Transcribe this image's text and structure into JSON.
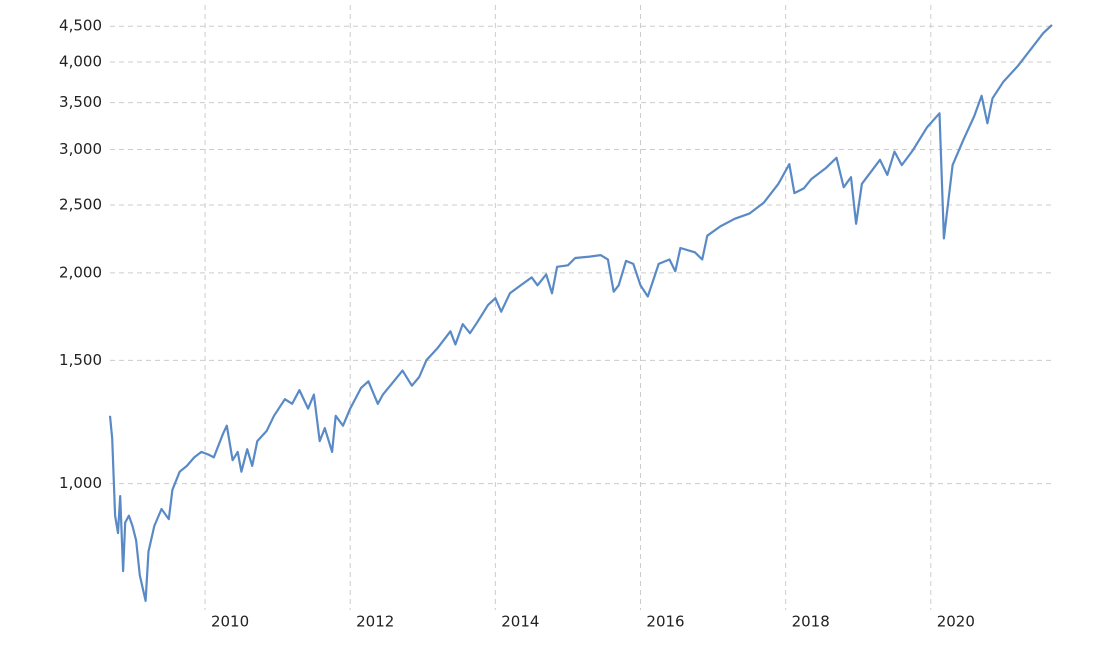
{
  "chart_data": {
    "type": "line",
    "x": [
      2008.69,
      2008.72,
      2008.76,
      2008.8,
      2008.83,
      2008.87,
      2008.9,
      2008.95,
      2009.0,
      2009.05,
      2009.1,
      2009.18,
      2009.22,
      2009.3,
      2009.4,
      2009.5,
      2009.55,
      2009.65,
      2009.75,
      2009.85,
      2009.95,
      2010.05,
      2010.12,
      2010.25,
      2010.3,
      2010.38,
      2010.45,
      2010.5,
      2010.58,
      2010.65,
      2010.72,
      2010.85,
      2010.95,
      2011.1,
      2011.2,
      2011.3,
      2011.42,
      2011.5,
      2011.58,
      2011.65,
      2011.75,
      2011.8,
      2011.9,
      2012.0,
      2012.15,
      2012.25,
      2012.38,
      2012.45,
      2012.6,
      2012.72,
      2012.85,
      2012.95,
      2013.05,
      2013.2,
      2013.38,
      2013.45,
      2013.55,
      2013.65,
      2013.75,
      2013.9,
      2014.0,
      2014.08,
      2014.2,
      2014.35,
      2014.5,
      2014.58,
      2014.7,
      2014.78,
      2014.85,
      2015.0,
      2015.1,
      2015.3,
      2015.45,
      2015.55,
      2015.63,
      2015.7,
      2015.8,
      2015.9,
      2016.0,
      2016.1,
      2016.25,
      2016.4,
      2016.48,
      2016.55,
      2016.75,
      2016.85,
      2016.92,
      2017.1,
      2017.3,
      2017.5,
      2017.7,
      2017.9,
      2018.05,
      2018.12,
      2018.25,
      2018.35,
      2018.55,
      2018.7,
      2018.8,
      2018.9,
      2018.97,
      2019.05,
      2019.3,
      2019.4,
      2019.5,
      2019.6,
      2019.75,
      2019.95,
      2020.12,
      2020.18,
      2020.3,
      2020.45,
      2020.6,
      2020.7,
      2020.78,
      2020.85,
      2021.0,
      2021.2,
      2021.4,
      2021.55,
      2021.67
    ],
    "values": [
      1250,
      1160,
      900,
      850,
      960,
      750,
      880,
      900,
      870,
      830,
      740,
      680,
      800,
      870,
      920,
      890,
      980,
      1040,
      1060,
      1090,
      1110,
      1100,
      1090,
      1180,
      1210,
      1080,
      1110,
      1040,
      1120,
      1060,
      1150,
      1190,
      1250,
      1320,
      1300,
      1360,
      1280,
      1340,
      1150,
      1200,
      1110,
      1250,
      1210,
      1280,
      1370,
      1400,
      1300,
      1340,
      1400,
      1450,
      1380,
      1420,
      1500,
      1560,
      1650,
      1580,
      1690,
      1640,
      1700,
      1800,
      1840,
      1760,
      1870,
      1920,
      1970,
      1920,
      1990,
      1870,
      2040,
      2050,
      2100,
      2110,
      2120,
      2090,
      1880,
      1920,
      2080,
      2060,
      1920,
      1850,
      2060,
      2090,
      2010,
      2170,
      2140,
      2090,
      2260,
      2330,
      2390,
      2430,
      2520,
      2680,
      2860,
      2600,
      2640,
      2720,
      2820,
      2920,
      2650,
      2740,
      2350,
      2680,
      2900,
      2760,
      2980,
      2850,
      2990,
      3230,
      3380,
      2240,
      2850,
      3100,
      3350,
      3580,
      3270,
      3550,
      3750,
      3950,
      4200,
      4400,
      4520
    ],
    "color": "#5a8ac6",
    "xlim": [
      2008.69,
      2021.67
    ],
    "xticks": [
      2010,
      2012,
      2014,
      2016,
      2018,
      2020
    ],
    "ylim": [
      660,
      4700
    ],
    "yticks": [
      {
        "value": 1000,
        "label": "1,000"
      },
      {
        "value": 1500,
        "label": "1,500"
      },
      {
        "value": 2000,
        "label": "2,000"
      },
      {
        "value": 2500,
        "label": "2,500"
      },
      {
        "value": 3000,
        "label": "3,000"
      },
      {
        "value": 3500,
        "label": "3,500"
      },
      {
        "value": 4000,
        "label": "4,000"
      },
      {
        "value": 4500,
        "label": "4,500"
      }
    ],
    "ylog": true,
    "grid": true
  }
}
